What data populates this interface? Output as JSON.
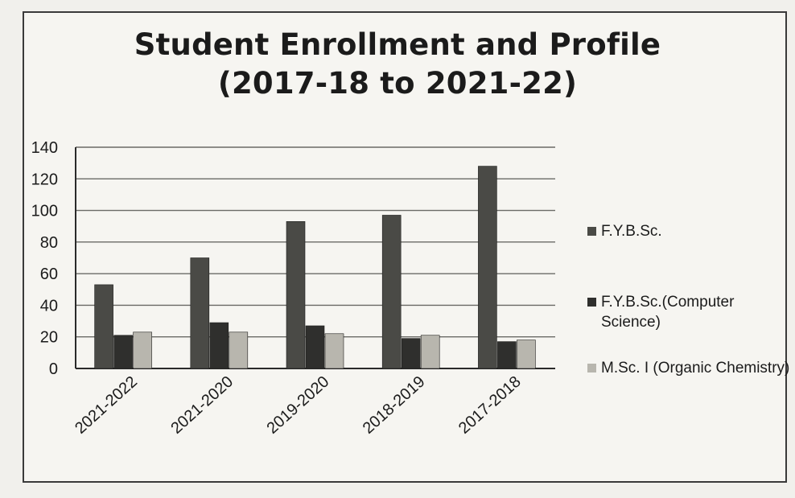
{
  "title": {
    "line1": "Student Enrollment and Profile",
    "line2": "(2017-18 to 2021-22)"
  },
  "colors": {
    "fybsc": "#4a4a46",
    "fybsc_cs": "#2f2f2d",
    "msc": "#b8b6ae",
    "axis": "#2a2a2a",
    "grid": "#6a6a66",
    "text": "#1b1b1b"
  },
  "chart_data": {
    "type": "bar",
    "title": "Student Enrollment and Profile (2017-18 to 2021-22)",
    "xlabel": "",
    "ylabel": "",
    "ylim": [
      0,
      140
    ],
    "yticks": [
      0,
      20,
      40,
      60,
      80,
      100,
      120,
      140
    ],
    "grid": true,
    "legend_position": "right",
    "categories": [
      "2021-2022",
      "2021-2020",
      "2019-2020",
      "2018-2019",
      "2017-2018"
    ],
    "series": [
      {
        "name": "F.Y.B.Sc.",
        "values": [
          53,
          70,
          93,
          97,
          128
        ]
      },
      {
        "name": "F.Y.B.Sc.(Computer Science)",
        "values": [
          21,
          29,
          27,
          19,
          17
        ]
      },
      {
        "name": "M.Sc. I (Organic Chemistry)",
        "values": [
          23,
          23,
          22,
          21,
          18
        ]
      }
    ]
  },
  "legend": {
    "items": [
      {
        "label": "F.Y.B.Sc."
      },
      {
        "label": "F.Y.B.Sc.(Computer Science)"
      },
      {
        "label": "M.Sc. I (Organic Chemistry)"
      }
    ]
  }
}
